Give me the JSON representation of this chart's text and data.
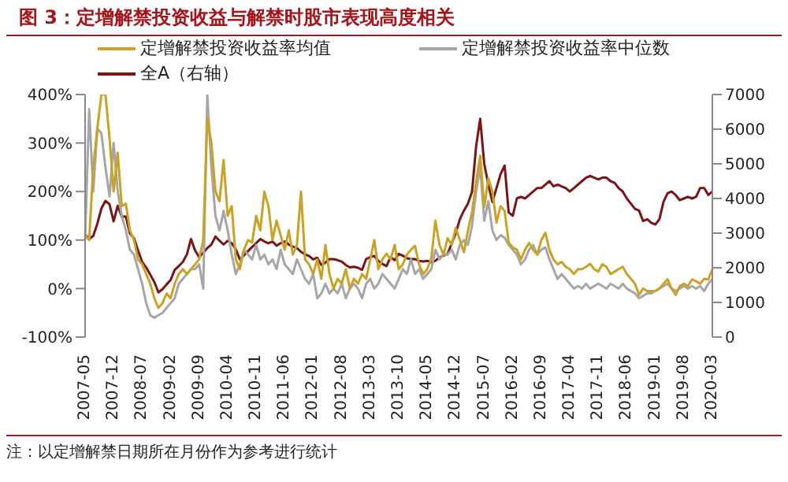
{
  "chart_data": {
    "type": "line",
    "title": "图 3：定增解禁投资收益与解禁时股市表现高度相关",
    "categories": [
      "2007-05",
      null,
      null,
      null,
      null,
      null,
      null,
      "2007-12",
      null,
      null,
      null,
      null,
      null,
      null,
      "2008-07",
      null,
      null,
      null,
      null,
      null,
      null,
      "2009-02",
      null,
      null,
      null,
      null,
      null,
      null,
      "2009-09",
      null,
      null,
      null,
      null,
      null,
      null,
      "2010-04",
      null,
      null,
      null,
      null,
      null,
      null,
      "2010-11",
      null,
      null,
      null,
      null,
      null,
      null,
      "2011-06",
      null,
      null,
      null,
      null,
      null,
      null,
      "2012-01",
      null,
      null,
      null,
      null,
      null,
      null,
      "2012-08",
      null,
      null,
      null,
      null,
      null,
      null,
      "2013-03",
      null,
      null,
      null,
      null,
      null,
      null,
      "2013-10",
      null,
      null,
      null,
      null,
      null,
      null,
      "2014-05",
      null,
      null,
      null,
      null,
      null,
      null,
      "2014-12",
      null,
      null,
      null,
      null,
      null,
      null,
      "2015-07",
      null,
      null,
      null,
      null,
      null,
      null,
      "2016-02",
      null,
      null,
      null,
      null,
      null,
      null,
      "2016-09",
      null,
      null,
      null,
      null,
      null,
      null,
      "2017-04",
      null,
      null,
      null,
      null,
      null,
      null,
      "2017-11",
      null,
      null,
      null,
      null,
      null,
      null,
      "2018-06",
      null,
      null,
      null,
      null,
      null,
      null,
      "2019-01",
      null,
      null,
      null,
      null,
      null,
      null,
      "2019-08",
      null,
      null,
      null,
      null,
      null,
      null,
      "2020-03"
    ],
    "series": [
      {
        "name": "定增解禁投资收益率均值",
        "color": "#c9a227",
        "values": [
          110,
          100,
          250,
          330,
          400,
          400,
          310,
          200,
          280,
          170,
          175,
          120,
          100,
          60,
          50,
          30,
          10,
          -20,
          -40,
          -30,
          -10,
          -20,
          10,
          30,
          40,
          30,
          40,
          50,
          60,
          100,
          350,
          300,
          200,
          180,
          265,
          150,
          170,
          60,
          40,
          80,
          100,
          95,
          150,
          120,
          200,
          170,
          100,
          140,
          110,
          80,
          120,
          70,
          90,
          200,
          60,
          50,
          30,
          60,
          20,
          90,
          30,
          0,
          20,
          10,
          40,
          0,
          20,
          10,
          30,
          20,
          60,
          100,
          40,
          60,
          72,
          60,
          90,
          40,
          50,
          70,
          80,
          88,
          50,
          30,
          40,
          62,
          140,
          90,
          70,
          104,
          90,
          125,
          100,
          75,
          120,
          157,
          220,
          274,
          168,
          227,
          200,
          136,
          170,
          160,
          95,
          85,
          80,
          60,
          80,
          94,
          80,
          70,
          100,
          115,
          80,
          60,
          50,
          55,
          45,
          40,
          30,
          40,
          40,
          45,
          51,
          40,
          35,
          50,
          45,
          30,
          35,
          40,
          45,
          30,
          20,
          10,
          -13,
          0,
          -5,
          -5,
          -5,
          0,
          10,
          19,
          0,
          -13,
          5,
          10,
          5,
          19,
          15,
          10,
          20,
          19,
          40
        ]
      },
      {
        "name": "定增解禁投资收益率中位数",
        "color": "#a6a6a6",
        "values": [
          100,
          370,
          200,
          330,
          320,
          250,
          190,
          300,
          200,
          150,
          120,
          80,
          70,
          40,
          10,
          -30,
          -55,
          -60,
          -55,
          -50,
          -40,
          -30,
          -20,
          10,
          20,
          30,
          40,
          40,
          50,
          0,
          400,
          250,
          150,
          120,
          160,
          120,
          70,
          30,
          50,
          80,
          70,
          60,
          90,
          60,
          70,
          50,
          60,
          40,
          80,
          50,
          40,
          30,
          60,
          40,
          20,
          10,
          30,
          -20,
          -10,
          10,
          -10,
          0,
          -10,
          10,
          -20,
          0,
          10,
          0,
          -20,
          10,
          20,
          0,
          10,
          30,
          20,
          10,
          0,
          20,
          40,
          30,
          60,
          30,
          40,
          20,
          30,
          40,
          80,
          60,
          70,
          70,
          80,
          60,
          90,
          100,
          90,
          130,
          200,
          250,
          140,
          180,
          120,
          100,
          110,
          105,
          90,
          80,
          70,
          50,
          60,
          80,
          90,
          70,
          80,
          85,
          60,
          40,
          20,
          30,
          20,
          10,
          0,
          5,
          0,
          10,
          0,
          5,
          10,
          5,
          0,
          10,
          5,
          0,
          10,
          0,
          -5,
          -10,
          -20,
          -15,
          -10,
          -10,
          -5,
          0,
          5,
          10,
          0,
          -5,
          0,
          5,
          0,
          5,
          0,
          5,
          -5,
          10,
          20
        ]
      },
      {
        "name": "全A（右轴）",
        "color": "#7b1416",
        "axis": "y2",
        "values": [
          2960,
          2830,
          2920,
          3270,
          3710,
          3930,
          3830,
          3340,
          3790,
          3480,
          3480,
          2990,
          2850,
          2500,
          2170,
          2010,
          1800,
          1590,
          1290,
          1380,
          1520,
          1650,
          1940,
          2050,
          2170,
          2390,
          2830,
          2500,
          2310,
          2430,
          2570,
          2670,
          2900,
          2780,
          2670,
          2780,
          2710,
          2530,
          2240,
          2360,
          2480,
          2600,
          2710,
          2830,
          2760,
          2710,
          2760,
          2640,
          2710,
          2760,
          2670,
          2610,
          2570,
          2460,
          2390,
          2340,
          2240,
          2290,
          2080,
          2150,
          2250,
          2250,
          2220,
          2180,
          2080,
          2010,
          2030,
          2000,
          1940,
          2250,
          2310,
          2340,
          2200,
          2110,
          2050,
          2310,
          2220,
          2400,
          2350,
          2280,
          2250,
          2250,
          2200,
          2180,
          2200,
          2160,
          2200,
          2300,
          2350,
          2400,
          2700,
          3000,
          3400,
          3650,
          3850,
          4200,
          5500,
          6300,
          5000,
          4400,
          3900,
          4300,
          4700,
          4950,
          3600,
          3500,
          4000,
          4050,
          4000,
          4100,
          4200,
          4300,
          4300,
          4400,
          4500,
          4350,
          4400,
          4350,
          4300,
          4200,
          4300,
          4400,
          4500,
          4600,
          4650,
          4600,
          4550,
          4600,
          4600,
          4500,
          4450,
          4300,
          4200,
          4000,
          3850,
          3700,
          3650,
          3350,
          3400,
          3300,
          3250,
          3400,
          3900,
          4150,
          4200,
          4100,
          3950,
          4000,
          4050,
          4000,
          4050,
          4300,
          4300,
          4100,
          4200
        ]
      }
    ],
    "ylim": [
      -100,
      400
    ],
    "yticks": [
      {
        "value": -100,
        "label": "-100%"
      },
      {
        "value": 0,
        "label": "0%"
      },
      {
        "value": 100,
        "label": "100%"
      },
      {
        "value": 200,
        "label": "200%"
      },
      {
        "value": 300,
        "label": "300%"
      },
      {
        "value": 400,
        "label": "400%"
      }
    ],
    "y2lim": [
      0,
      7000
    ],
    "y2ticks": [
      0,
      1000,
      2000,
      3000,
      4000,
      5000,
      6000,
      7000
    ],
    "legend": "top",
    "grid": false,
    "marker": "none",
    "line_style": "solid",
    "annotations": [
      "注：以定增解禁日期所在月份作为参考进行统计"
    ]
  }
}
